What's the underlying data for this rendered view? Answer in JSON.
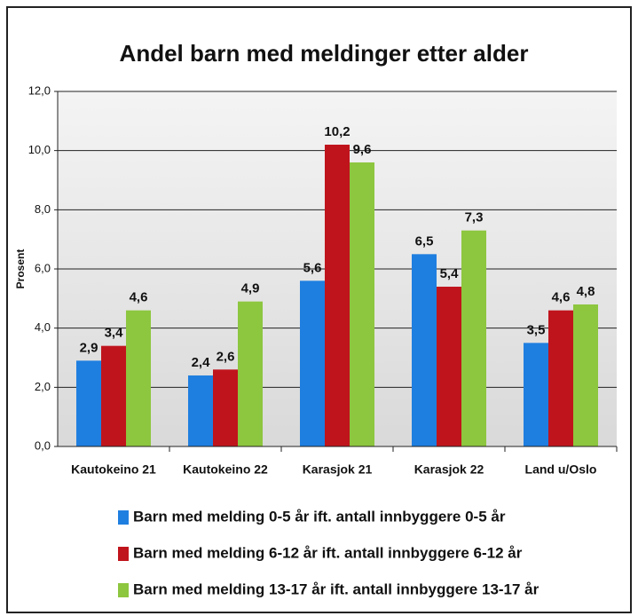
{
  "chart_data": {
    "type": "bar",
    "title": "Andel barn med meldinger etter alder",
    "y_label": "Prosent",
    "categories": [
      "Kautokeino 21",
      "Kautokeino 22",
      "Karasjok 21",
      "Karasjok 22",
      "Land u/Oslo"
    ],
    "series": [
      {
        "name": "Barn med melding 0-5 år ift. antall innbyggere 0-5 år",
        "color": "#1f7fe0",
        "values": [
          2.9,
          2.4,
          5.6,
          6.5,
          3.5
        ],
        "value_labels": [
          "2,9",
          "2,4",
          "5,6",
          "6,5",
          "3,5"
        ]
      },
      {
        "name": "Barn med melding 6-12 år ift. antall innbyggere 6-12 år",
        "color": "#c0141c",
        "values": [
          3.4,
          2.6,
          10.2,
          5.4,
          4.6
        ],
        "value_labels": [
          "3,4",
          "2,6",
          "10,2",
          "5,4",
          "4,6"
        ]
      },
      {
        "name": "Barn med melding 13-17 år ift. antall innbyggere 13-17 år",
        "color": "#8dc63f",
        "values": [
          4.6,
          4.9,
          9.6,
          7.3,
          4.8
        ],
        "value_labels": [
          "4,6",
          "4,9",
          "9,6",
          "7,3",
          "4,8"
        ]
      }
    ],
    "ylim": [
      0,
      12
    ],
    "yticks": [
      {
        "value": 0,
        "label": "0,0"
      },
      {
        "value": 2,
        "label": "2,0"
      },
      {
        "value": 4,
        "label": "4,0"
      },
      {
        "value": 6,
        "label": "6,0"
      },
      {
        "value": 8,
        "label": "8,0"
      },
      {
        "value": 10,
        "label": "10,0"
      },
      {
        "value": 12,
        "label": "12,0"
      }
    ],
    "grid": true
  }
}
